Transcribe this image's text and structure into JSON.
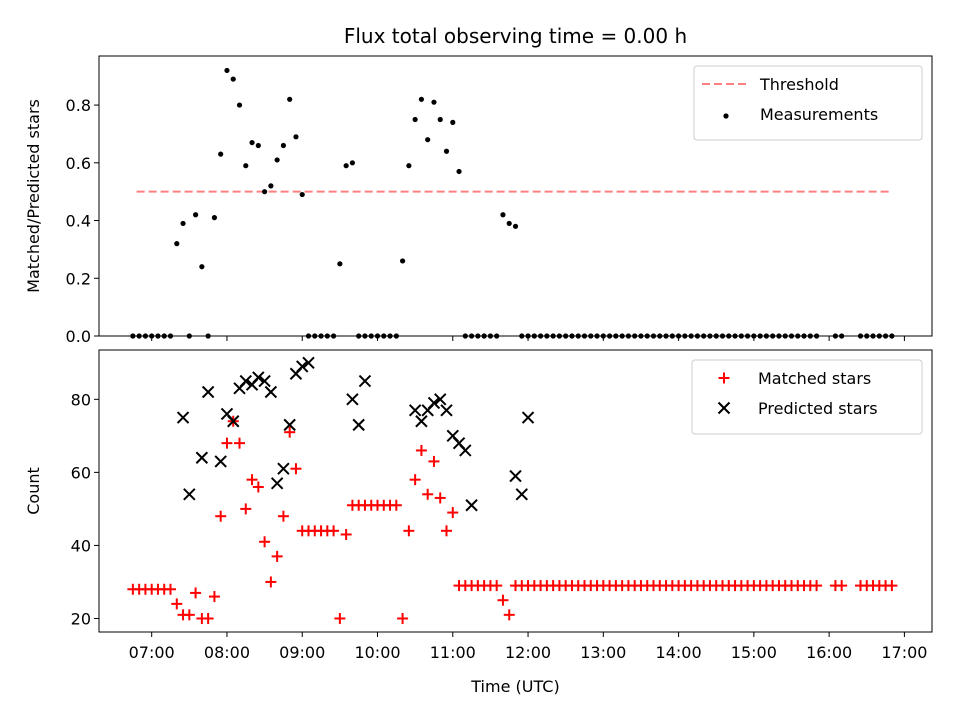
{
  "chart_data": [
    {
      "type": "scatter",
      "title": "Flux total observing time = 0.00 h",
      "xlabel": "",
      "ylabel": "Matched/Predicted stars",
      "xlim": [
        "06:18",
        "17:22"
      ],
      "ylim": [
        0,
        0.97
      ],
      "yticks": [
        "0.0",
        "0.2",
        "0.4",
        "0.6",
        "0.8"
      ],
      "legend_position": "top-right",
      "threshold": {
        "name": "Threshold",
        "y": 0.5,
        "x_start": "06:48",
        "x_end": "16:48",
        "color": "#ff8080"
      },
      "series": [
        {
          "name": "Measurements",
          "color": "#000000",
          "x": [
            "06:45",
            "06:50",
            "06:55",
            "07:00",
            "07:05",
            "07:10",
            "07:15",
            "07:20",
            "07:25",
            "07:30",
            "07:35",
            "07:40",
            "07:45",
            "07:50",
            "07:55",
            "08:00",
            "08:05",
            "08:10",
            "08:15",
            "08:20",
            "08:25",
            "08:30",
            "08:35",
            "08:40",
            "08:45",
            "08:50",
            "08:55",
            "09:00",
            "09:05",
            "09:10",
            "09:15",
            "09:20",
            "09:25",
            "09:30",
            "09:35",
            "09:40",
            "09:45",
            "09:50",
            "09:55",
            "10:00",
            "10:05",
            "10:10",
            "10:15",
            "10:20",
            "10:25",
            "10:30",
            "10:35",
            "10:40",
            "10:45",
            "10:50",
            "10:55",
            "11:00",
            "11:05",
            "11:10",
            "11:15",
            "11:20",
            "11:25",
            "11:30",
            "11:35",
            "11:40",
            "11:45",
            "11:50",
            "11:55",
            "12:00",
            "12:05",
            "12:10",
            "12:15",
            "12:20",
            "12:25",
            "12:30",
            "12:35",
            "12:40",
            "12:45",
            "12:50",
            "12:55",
            "13:00",
            "13:05",
            "13:10",
            "13:15",
            "13:20",
            "13:25",
            "13:30",
            "13:35",
            "13:40",
            "13:45",
            "13:50",
            "13:55",
            "14:00",
            "14:05",
            "14:10",
            "14:15",
            "14:20",
            "14:25",
            "14:30",
            "14:35",
            "14:40",
            "14:45",
            "14:50",
            "14:55",
            "15:00",
            "15:05",
            "15:10",
            "15:15",
            "15:20",
            "15:25",
            "15:30",
            "15:35",
            "15:40",
            "15:45",
            "15:50",
            "16:05",
            "16:10",
            "16:25",
            "16:30",
            "16:35",
            "16:40",
            "16:45",
            "16:50"
          ],
          "y": [
            0,
            0,
            0,
            0,
            0,
            0,
            0,
            0.32,
            0.39,
            0,
            0.42,
            0.24,
            0,
            0.41,
            0.63,
            0.92,
            0.89,
            0.8,
            0.59,
            0.67,
            0.66,
            0.5,
            0.52,
            0.61,
            0.66,
            0.82,
            0.69,
            0.49,
            0,
            0,
            0,
            0,
            0,
            0.25,
            0.59,
            0.6,
            0,
            0,
            0,
            0,
            0,
            0,
            0,
            0.26,
            0.59,
            0.75,
            0.82,
            0.68,
            0.81,
            0.75,
            0.64,
            0.74,
            0.57,
            0,
            0,
            0,
            0,
            0,
            0,
            0.42,
            0.39,
            0.38,
            0,
            0,
            0,
            0,
            0,
            0,
            0,
            0,
            0,
            0,
            0,
            0,
            0,
            0,
            0,
            0,
            0,
            0,
            0,
            0,
            0,
            0,
            0,
            0,
            0,
            0,
            0,
            0,
            0,
            0,
            0,
            0,
            0,
            0,
            0,
            0,
            0,
            0,
            0,
            0,
            0,
            0,
            0,
            0,
            0,
            0,
            0,
            0,
            0,
            0,
            0,
            0,
            0,
            0,
            0,
            0
          ]
        }
      ]
    },
    {
      "type": "scatter",
      "title": "",
      "xlabel": "Time (UTC)",
      "ylabel": "Count",
      "xlim": [
        "06:18",
        "17:22"
      ],
      "ylim": [
        16.3,
        93.5
      ],
      "xticks": [
        "07:00",
        "08:00",
        "09:00",
        "10:00",
        "11:00",
        "12:00",
        "13:00",
        "14:00",
        "15:00",
        "16:00",
        "17:00"
      ],
      "yticks": [
        "20",
        "40",
        "60",
        "80"
      ],
      "legend_position": "top-right",
      "series": [
        {
          "name": "Matched stars",
          "marker": "+",
          "color": "#ff0000",
          "x": [
            "06:45",
            "06:50",
            "06:55",
            "07:00",
            "07:05",
            "07:10",
            "07:15",
            "07:20",
            "07:25",
            "07:30",
            "07:35",
            "07:40",
            "07:45",
            "07:50",
            "07:55",
            "08:00",
            "08:05",
            "08:10",
            "08:15",
            "08:20",
            "08:25",
            "08:30",
            "08:35",
            "08:40",
            "08:45",
            "08:50",
            "08:55",
            "09:00",
            "09:05",
            "09:10",
            "09:15",
            "09:20",
            "09:25",
            "09:30",
            "09:35",
            "09:40",
            "09:45",
            "09:50",
            "09:55",
            "10:00",
            "10:05",
            "10:10",
            "10:15",
            "10:20",
            "10:25",
            "10:30",
            "10:35",
            "10:40",
            "10:45",
            "10:50",
            "10:55",
            "11:00",
            "11:05",
            "11:10",
            "11:15",
            "11:20",
            "11:25",
            "11:30",
            "11:35",
            "11:40",
            "11:45",
            "11:50",
            "11:55",
            "12:00",
            "12:05",
            "12:10",
            "12:15",
            "12:20",
            "12:25",
            "12:30",
            "12:35",
            "12:40",
            "12:45",
            "12:50",
            "12:55",
            "13:00",
            "13:05",
            "13:10",
            "13:15",
            "13:20",
            "13:25",
            "13:30",
            "13:35",
            "13:40",
            "13:45",
            "13:50",
            "13:55",
            "14:00",
            "14:05",
            "14:10",
            "14:15",
            "14:20",
            "14:25",
            "14:30",
            "14:35",
            "14:40",
            "14:45",
            "14:50",
            "14:55",
            "15:00",
            "15:05",
            "15:10",
            "15:15",
            "15:20",
            "15:25",
            "15:30",
            "15:35",
            "15:40",
            "15:45",
            "15:50",
            "16:05",
            "16:10",
            "16:25",
            "16:30",
            "16:35",
            "16:40",
            "16:45",
            "16:50"
          ],
          "y": [
            28,
            28,
            28,
            28,
            28,
            28,
            28,
            24,
            21,
            21,
            27,
            20,
            20,
            26,
            48,
            68,
            74,
            68,
            50,
            58,
            56,
            41,
            30,
            37,
            48,
            71,
            61,
            44,
            44,
            44,
            44,
            44,
            44,
            20,
            43,
            51,
            51,
            51,
            51,
            51,
            51,
            51,
            51,
            20,
            44,
            58,
            66,
            54,
            63,
            53,
            44,
            49,
            29,
            29,
            29,
            29,
            29,
            29,
            29,
            25,
            21,
            29,
            29,
            29,
            29,
            29,
            29,
            29,
            29,
            29,
            29,
            29,
            29,
            29,
            29,
            29,
            29,
            29,
            29,
            29,
            29,
            29,
            29,
            29,
            29,
            29,
            29,
            29,
            29,
            29,
            29,
            29,
            29,
            29,
            29,
            29,
            29,
            29,
            29,
            29,
            29,
            29,
            29,
            29,
            29,
            29,
            29,
            29,
            29,
            29,
            29,
            29,
            29,
            29,
            29,
            29,
            29,
            29
          ]
        },
        {
          "name": "Predicted stars",
          "marker": "x",
          "color": "#000000",
          "x": [
            "07:25",
            "07:30",
            "07:40",
            "07:45",
            "07:55",
            "08:00",
            "08:05",
            "08:10",
            "08:15",
            "08:20",
            "08:25",
            "08:30",
            "08:35",
            "08:40",
            "08:45",
            "08:50",
            "08:55",
            "09:00",
            "09:05",
            "09:40",
            "09:45",
            "09:50",
            "10:30",
            "10:35",
            "10:40",
            "10:45",
            "10:50",
            "10:55",
            "11:00",
            "11:05",
            "11:10",
            "11:15",
            "11:50",
            "11:55",
            "12:00"
          ],
          "y": [
            75,
            54,
            64,
            82,
            63,
            76,
            74,
            83,
            85,
            84,
            86,
            85,
            82,
            57,
            61,
            73,
            87,
            89,
            90,
            80,
            73,
            85,
            77,
            74,
            77,
            79,
            80,
            77,
            70,
            68,
            66,
            51,
            59,
            54,
            75
          ]
        }
      ]
    }
  ]
}
